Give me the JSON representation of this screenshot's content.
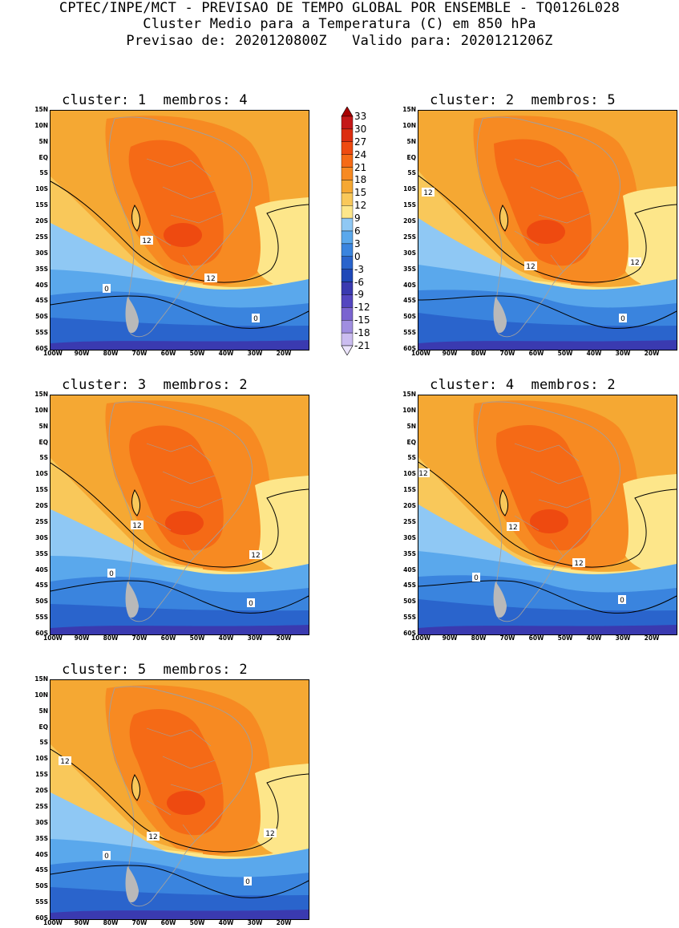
{
  "header": {
    "line1": "CPTEC/INPE/MCT - PREVISAO DE TEMPO GLOBAL POR ENSEMBLE - TQ0126L028",
    "line2": "Cluster Medio para a Temperatura (C) em 850 hPa",
    "line3": "Previsao de: 2020120800Z   Valido para: 2020121206Z"
  },
  "panels": [
    {
      "title": "cluster: 1  membros: 4",
      "contour_labels": [
        "12",
        "12",
        "0",
        "0"
      ]
    },
    {
      "title": "cluster: 2  membros: 5",
      "contour_labels": [
        "12",
        "12",
        "12",
        "0"
      ]
    },
    {
      "title": "cluster: 3  membros: 2",
      "contour_labels": [
        "12",
        "12",
        "0",
        "0"
      ]
    },
    {
      "title": "cluster: 4  membros: 2",
      "contour_labels": [
        "12",
        "12",
        "12",
        "0",
        "0"
      ]
    },
    {
      "title": "cluster: 5  membros: 2",
      "contour_labels": [
        "12",
        "12",
        "12",
        "0",
        "0"
      ]
    }
  ],
  "axes": {
    "lat_labels": [
      "15N",
      "10N",
      "5N",
      "EQ",
      "5S",
      "10S",
      "15S",
      "20S",
      "25S",
      "30S",
      "35S",
      "40S",
      "45S",
      "50S",
      "55S",
      "60S"
    ],
    "lon_labels": [
      "100W",
      "90W",
      "80W",
      "70W",
      "60W",
      "50W",
      "40W",
      "30W",
      "20W"
    ]
  },
  "colorbar": {
    "labels": [
      "33",
      "30",
      "27",
      "24",
      "21",
      "18",
      "15",
      "12",
      "9",
      "6",
      "3",
      "0",
      "-3",
      "-6",
      "-9",
      "-12",
      "-15",
      "-18",
      "-21"
    ],
    "colors": [
      "#a80000",
      "#c41818",
      "#dc2e10",
      "#ee4a10",
      "#f56a16",
      "#f78a22",
      "#f5a833",
      "#f9c85a",
      "#fde68a",
      "#8fc8f4",
      "#5aa8ec",
      "#3a84de",
      "#2a64cc",
      "#1f48b8",
      "#3a3ab0",
      "#5446c0",
      "#7a64d0",
      "#a08ee0",
      "#cbbdf0",
      "#ebe4fb"
    ]
  },
  "colors": {
    "land_outline": "#a0a0a0",
    "contour": "#000000"
  }
}
